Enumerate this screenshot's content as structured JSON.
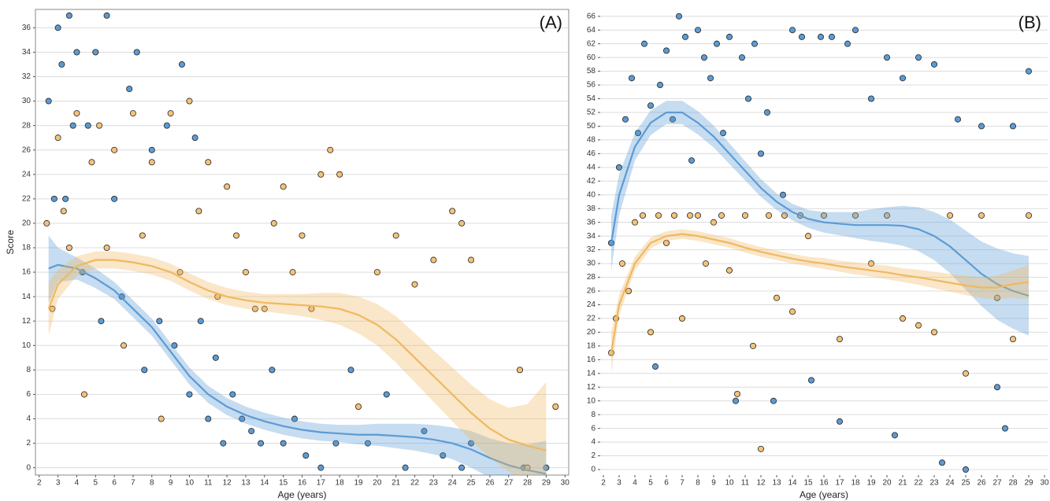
{
  "chart_data": [
    {
      "type": "scatter",
      "title": "(A)",
      "x_label": "Age (years)",
      "y_label": "Score",
      "xlim": [
        1.8,
        30.2
      ],
      "xticks": [
        2,
        3,
        4,
        5,
        6,
        7,
        8,
        9,
        10,
        11,
        12,
        13,
        14,
        15,
        16,
        17,
        18,
        19,
        20,
        21,
        22,
        23,
        24,
        25,
        26,
        27,
        28,
        29,
        30
      ],
      "ylim": [
        -0.6,
        37.5
      ],
      "yticks": [
        0,
        2,
        4,
        6,
        8,
        10,
        12,
        14,
        16,
        18,
        20,
        22,
        24,
        26,
        28,
        30,
        32,
        34,
        36
      ],
      "grid": true,
      "series": [
        {
          "color": "#5b9bd5",
          "x": [
            2.5,
            2.8,
            3,
            3.2,
            3.4,
            3.6,
            3.8,
            4,
            4.3,
            4.6,
            5,
            5.3,
            5.6,
            6,
            6.4,
            6.8,
            7.2,
            7.6,
            8,
            8.4,
            8.8,
            9.2,
            9.6,
            10,
            10.3,
            10.6,
            11,
            11.4,
            11.8,
            12.3,
            12.8,
            13.3,
            13.8,
            14.4,
            15,
            15.6,
            16.2,
            17,
            17.8,
            18.6,
            19.5,
            20.5,
            21.5,
            22.5,
            23.5,
            24.5,
            25,
            27.8,
            29
          ],
          "values": [
            30,
            22,
            36,
            33,
            22,
            37,
            28,
            34,
            16,
            28,
            34,
            12,
            37,
            22,
            14,
            31,
            34,
            8,
            26,
            12,
            28,
            10,
            33,
            6,
            27,
            12,
            4,
            9,
            2,
            6,
            4,
            3,
            2,
            8,
            2,
            4,
            1,
            0,
            2,
            8,
            2,
            6,
            0,
            3,
            1,
            0,
            2,
            0,
            0
          ]
        },
        {
          "color": "#f5c27a",
          "x": [
            2.4,
            2.7,
            3,
            3.3,
            3.6,
            4,
            4.4,
            4.8,
            5.2,
            5.6,
            6,
            6.5,
            7,
            7.5,
            8,
            8.5,
            9,
            9.5,
            10,
            10.5,
            11,
            11.5,
            12,
            12.5,
            13,
            13.5,
            14,
            14.5,
            15,
            15.5,
            16,
            16.5,
            17,
            17.5,
            18,
            19,
            20,
            21,
            22,
            23,
            24,
            24.5,
            25,
            27.6,
            28,
            29.5
          ],
          "values": [
            20,
            13,
            27,
            21,
            18,
            29,
            6,
            25,
            28,
            18,
            26,
            10,
            29,
            19,
            25,
            4,
            29,
            16,
            30,
            21,
            25,
            14,
            23,
            19,
            16,
            13,
            13,
            20,
            23,
            16,
            19,
            13,
            24,
            26,
            24,
            5,
            16,
            19,
            15,
            17,
            21,
            20,
            17,
            8,
            0,
            5
          ]
        }
      ],
      "fits": [
        {
          "color": "#5b9bd5",
          "x": [
            2.5,
            3,
            4,
            5,
            6,
            7,
            8,
            9,
            10,
            11,
            12,
            13,
            14,
            15,
            16,
            17,
            18,
            19,
            20,
            21,
            22,
            23,
            24,
            25,
            26,
            27,
            28,
            29
          ],
          "values": [
            16.3,
            16.6,
            16.3,
            15.5,
            14.5,
            13,
            11.5,
            9.5,
            7.5,
            6,
            5,
            4.3,
            3.8,
            3.4,
            3.1,
            2.9,
            2.8,
            2.7,
            2.7,
            2.6,
            2.5,
            2.3,
            2,
            1.5,
            0.8,
            0.2,
            -0.2,
            -0.5
          ],
          "lower": [
            13.5,
            15.2,
            15.4,
            14.7,
            13.8,
            12.3,
            10.8,
            8.8,
            6.8,
            5.3,
            4.3,
            3.6,
            3.1,
            2.7,
            2.4,
            2.2,
            2.1,
            1.9,
            1.8,
            1.6,
            1.4,
            1.1,
            0.7,
            0,
            -0.8,
            -1.6,
            -2.3,
            -2.8
          ],
          "upper": [
            19,
            18,
            17.2,
            16.3,
            15.2,
            13.7,
            12.2,
            10.2,
            8.2,
            6.7,
            5.7,
            5,
            4.5,
            4.1,
            3.8,
            3.6,
            3.5,
            3.5,
            3.6,
            3.6,
            3.6,
            3.5,
            3.3,
            3,
            2.4,
            2,
            1.9,
            2.2
          ]
        },
        {
          "color": "#f0b860",
          "x": [
            2.5,
            3,
            4,
            5,
            6,
            7,
            8,
            9,
            10,
            11,
            12,
            13,
            14,
            15,
            16,
            17,
            18,
            19,
            20,
            21,
            22,
            23,
            24,
            25,
            26,
            27,
            28,
            29
          ],
          "values": [
            13,
            15,
            16.5,
            17,
            17,
            16.8,
            16.5,
            16,
            15.2,
            14.5,
            14,
            13.7,
            13.5,
            13.4,
            13.3,
            13.2,
            13,
            12.5,
            11.7,
            10.5,
            9,
            7.5,
            6,
            4.5,
            3.2,
            2.3,
            1.8,
            1.4
          ],
          "lower": [
            10.8,
            13.8,
            15.7,
            16.3,
            16.3,
            16.1,
            15.8,
            15.3,
            14.5,
            13.8,
            13.3,
            13,
            12.8,
            12.6,
            12.4,
            12.1,
            11.7,
            11,
            10,
            8.6,
            7,
            5.4,
            3.8,
            2.2,
            0.8,
            -0.3,
            -1.2,
            -2
          ],
          "upper": [
            15.2,
            16.2,
            17.3,
            17.7,
            17.7,
            17.5,
            17.2,
            16.7,
            15.9,
            15.2,
            14.7,
            14.4,
            14.2,
            14.2,
            14.2,
            14.3,
            14.3,
            14,
            13.4,
            12.4,
            11,
            9.6,
            8.2,
            6.8,
            5.6,
            4.9,
            5.2,
            7
          ]
        }
      ]
    },
    {
      "type": "scatter",
      "title": "(B)",
      "x_label": "Age (years)",
      "xlim": [
        1.8,
        30.2
      ],
      "xticks": [
        2,
        3,
        4,
        5,
        6,
        7,
        8,
        9,
        10,
        11,
        12,
        13,
        14,
        15,
        16,
        17,
        18,
        19,
        20,
        21,
        22,
        23,
        24,
        25,
        26,
        27,
        28,
        29,
        30
      ],
      "ylim": [
        -0.8,
        67
      ],
      "yticks": [
        0,
        2,
        4,
        6,
        8,
        10,
        12,
        14,
        16,
        18,
        20,
        22,
        24,
        26,
        28,
        30,
        32,
        34,
        36,
        38,
        40,
        42,
        44,
        46,
        48,
        50,
        52,
        54,
        56,
        58,
        60,
        62,
        64,
        66
      ],
      "grid": true,
      "series": [
        {
          "color": "#5b9bd5",
          "x": [
            2.5,
            3,
            3.4,
            3.8,
            4.2,
            4.6,
            5,
            5.3,
            5.6,
            6,
            6.4,
            6.8,
            7.2,
            7.6,
            8,
            8.4,
            8.8,
            9.2,
            9.6,
            10,
            10.4,
            10.8,
            11.2,
            11.6,
            12,
            12.4,
            12.8,
            13.4,
            14,
            14.6,
            15.2,
            15.8,
            16.5,
            17,
            17.5,
            18,
            19,
            20,
            20.5,
            21,
            22,
            23,
            23.5,
            24.5,
            25,
            26,
            27,
            27.5,
            28,
            29
          ],
          "values": [
            33,
            44,
            51,
            57,
            49,
            62,
            53,
            15,
            56,
            61,
            51,
            66,
            63,
            45,
            64,
            60,
            57,
            62,
            49,
            63,
            10,
            60,
            54,
            62,
            46,
            52,
            10,
            40,
            64,
            63,
            13,
            63,
            63,
            7,
            62,
            64,
            54,
            60,
            5,
            57,
            60,
            59,
            1,
            51,
            0,
            50,
            12,
            6,
            50,
            58
          ]
        },
        {
          "color": "#f5c27a",
          "x": [
            2.5,
            2.8,
            3.2,
            3.6,
            4,
            4.5,
            5,
            5.5,
            6,
            6.5,
            7,
            7.5,
            8,
            8.5,
            9,
            9.5,
            10,
            10.5,
            11,
            11.5,
            12,
            12.5,
            13,
            13.5,
            14,
            14.5,
            15,
            16,
            17,
            18,
            19,
            20,
            21,
            22,
            23,
            24,
            25,
            26,
            27,
            28,
            29
          ],
          "values": [
            17,
            22,
            30,
            26,
            36,
            37,
            20,
            37,
            33,
            37,
            22,
            37,
            37,
            30,
            36,
            37,
            29,
            11,
            37,
            18,
            3,
            37,
            25,
            37,
            23,
            37,
            34,
            37,
            19,
            37,
            30,
            37,
            22,
            21,
            20,
            37,
            14,
            37,
            25,
            19,
            37
          ]
        }
      ],
      "fits": [
        {
          "color": "#5b9bd5",
          "x": [
            2.5,
            3,
            4,
            5,
            6,
            7,
            8,
            9,
            10,
            11,
            12,
            13,
            14,
            15,
            16,
            17,
            18,
            19,
            20,
            21,
            22,
            23,
            24,
            25,
            26,
            27,
            28,
            29
          ],
          "values": [
            33,
            40,
            47,
            50.5,
            52,
            52,
            50.5,
            48.5,
            46,
            43.5,
            41,
            39,
            37.5,
            36.5,
            36,
            35.8,
            35.6,
            35.6,
            35.6,
            35.5,
            35,
            34,
            32.5,
            30.5,
            28.5,
            27,
            26,
            25.3
          ],
          "lower": [
            29,
            37,
            45,
            48.7,
            50.3,
            50.3,
            48.8,
            46.9,
            44.5,
            42.1,
            39.7,
            37.8,
            36.3,
            35.2,
            34.5,
            34.1,
            33.7,
            33.3,
            33,
            32.6,
            31.8,
            30.5,
            28.6,
            26.2,
            23.8,
            21.8,
            20.5,
            19.5
          ],
          "upper": [
            37,
            43,
            49,
            52.3,
            53.7,
            53.7,
            52.2,
            50.1,
            47.5,
            44.9,
            42.3,
            40.2,
            38.7,
            37.8,
            37.5,
            37.5,
            37.5,
            37.9,
            38.2,
            38.4,
            38.2,
            37.5,
            36.4,
            34.8,
            33.2,
            32.2,
            31.5,
            31.1
          ]
        },
        {
          "color": "#f0b860",
          "x": [
            2.5,
            3,
            4,
            5,
            6,
            7,
            8,
            9,
            10,
            11,
            12,
            13,
            14,
            15,
            16,
            17,
            18,
            19,
            20,
            21,
            22,
            23,
            24,
            25,
            26,
            27,
            28,
            29
          ],
          "values": [
            17,
            24,
            30,
            33,
            34,
            34.3,
            34,
            33.5,
            33,
            32.3,
            31.7,
            31.2,
            30.7,
            30.3,
            30,
            29.6,
            29.3,
            29,
            28.7,
            28.3,
            28,
            27.6,
            27.2,
            26.8,
            26.5,
            26.5,
            27,
            27.3
          ],
          "lower": [
            14,
            22.5,
            29,
            32.2,
            33.3,
            33.6,
            33.3,
            32.8,
            32.3,
            31.6,
            31,
            30.5,
            30,
            29.6,
            29.2,
            28.8,
            28.4,
            28.1,
            27.7,
            27.3,
            26.9,
            26.4,
            25.9,
            25.4,
            25,
            24.8,
            25,
            24.8
          ],
          "upper": [
            20,
            25.5,
            31,
            33.8,
            34.7,
            35,
            34.7,
            34.2,
            33.7,
            33,
            32.4,
            31.9,
            31.4,
            31,
            30.8,
            30.4,
            30.2,
            29.9,
            29.7,
            29.3,
            29.1,
            28.8,
            28.5,
            28.2,
            28,
            28.2,
            29,
            29.8
          ]
        }
      ]
    }
  ]
}
